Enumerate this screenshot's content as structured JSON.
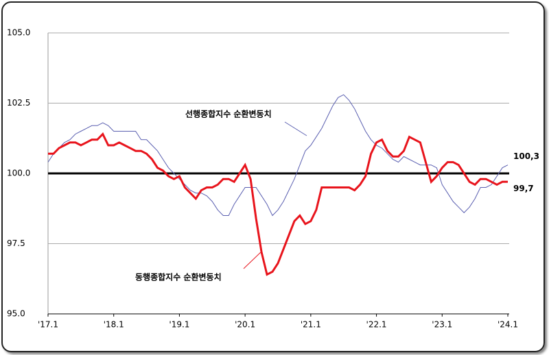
{
  "chart_data": {
    "type": "line",
    "categories": [
      "'17.1",
      null,
      null,
      null,
      null,
      null,
      null,
      null,
      null,
      null,
      null,
      null,
      "'18.1",
      null,
      null,
      null,
      null,
      null,
      null,
      null,
      null,
      null,
      null,
      null,
      "'19.1",
      null,
      null,
      null,
      null,
      null,
      null,
      null,
      null,
      null,
      null,
      null,
      "'20.1",
      null,
      null,
      null,
      null,
      null,
      null,
      null,
      null,
      null,
      null,
      null,
      "'21.1",
      null,
      null,
      null,
      null,
      null,
      null,
      null,
      null,
      null,
      null,
      null,
      "'22.1",
      null,
      null,
      null,
      null,
      null,
      null,
      null,
      null,
      null,
      null,
      null,
      "'23.1",
      null,
      null,
      null,
      null,
      null,
      null,
      null,
      null,
      null,
      null,
      null,
      "'24.1"
    ],
    "series": [
      {
        "name": "선행종합지수 순환변동치",
        "color": "#5a5fb0",
        "width": 1,
        "values": [
          100.4,
          100.7,
          100.9,
          101.1,
          101.2,
          101.4,
          101.5,
          101.6,
          101.7,
          101.7,
          101.8,
          101.7,
          101.5,
          101.5,
          101.5,
          101.5,
          101.5,
          101.2,
          101.2,
          101.0,
          100.8,
          100.5,
          100.2,
          100.0,
          99.8,
          99.6,
          99.4,
          99.3,
          99.3,
          99.2,
          99.0,
          98.7,
          98.5,
          98.5,
          98.9,
          99.2,
          99.5,
          99.5,
          99.5,
          99.2,
          98.9,
          98.5,
          98.7,
          99.0,
          99.4,
          99.8,
          100.3,
          100.8,
          101.0,
          101.3,
          101.6,
          102.0,
          102.4,
          102.7,
          102.8,
          102.6,
          102.3,
          101.9,
          101.5,
          101.2,
          101.0,
          100.9,
          100.7,
          100.5,
          100.4,
          100.6,
          100.5,
          100.4,
          100.3,
          100.3,
          100.3,
          100.2,
          99.6,
          99.3,
          99.0,
          98.8,
          98.6,
          98.8,
          99.1,
          99.5,
          99.5,
          99.6,
          99.9,
          100.2,
          100.3
        ],
        "end_label": "100,3"
      },
      {
        "name": "동행종합지수 순환변동치",
        "color": "#e8141c",
        "width": 3,
        "values": [
          100.7,
          100.7,
          100.9,
          101.0,
          101.1,
          101.1,
          101.0,
          101.1,
          101.2,
          101.2,
          101.4,
          101.0,
          101.0,
          101.1,
          101.0,
          100.9,
          100.8,
          100.8,
          100.7,
          100.5,
          100.2,
          100.1,
          99.9,
          99.8,
          99.9,
          99.5,
          99.3,
          99.1,
          99.4,
          99.5,
          99.5,
          99.6,
          99.8,
          99.8,
          99.7,
          100.0,
          100.3,
          99.8,
          98.4,
          97.2,
          96.4,
          96.5,
          96.8,
          97.3,
          97.8,
          98.3,
          98.5,
          98.2,
          98.3,
          98.7,
          99.5,
          99.5,
          99.5,
          99.5,
          99.5,
          99.5,
          99.4,
          99.6,
          99.9,
          100.7,
          101.1,
          101.2,
          100.8,
          100.6,
          100.6,
          100.8,
          101.3,
          101.2,
          101.1,
          100.4,
          99.7,
          99.9,
          100.2,
          100.4,
          100.4,
          100.3,
          100.0,
          99.7,
          99.6,
          99.8,
          99.8,
          99.7,
          99.6,
          99.7,
          99.7
        ],
        "end_label": "99,7"
      }
    ],
    "ylim": [
      95,
      105
    ],
    "yticks": [
      {
        "value": 95,
        "label": "95.0"
      },
      97.5,
      {
        "value": 100,
        "label": "100.0"
      },
      102.5,
      {
        "value": 105,
        "label": "105.0"
      }
    ],
    "reference_line": 100,
    "grid": true
  }
}
